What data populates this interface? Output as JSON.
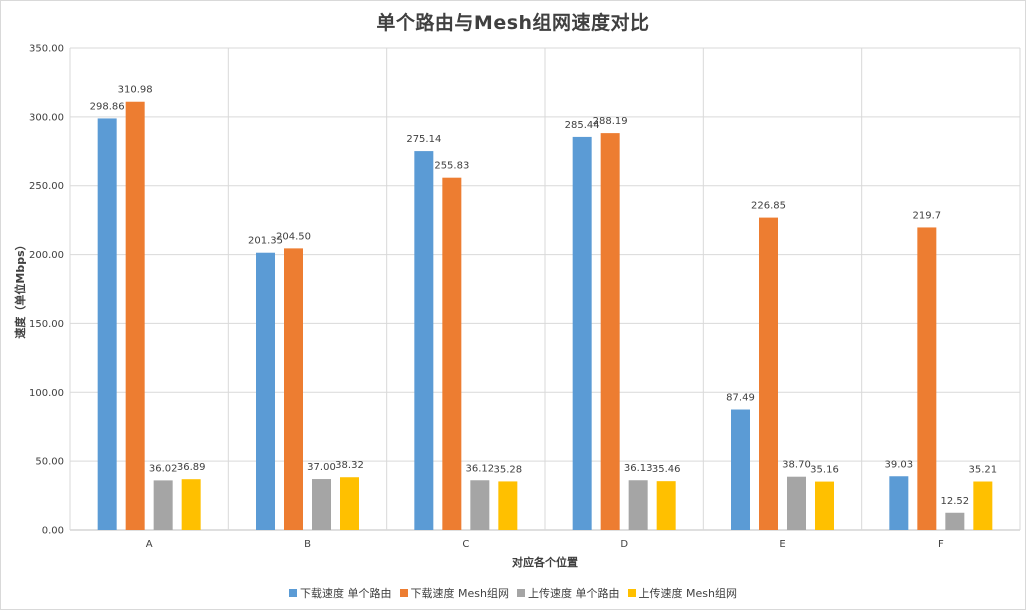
{
  "chart_data": {
    "type": "bar",
    "title": "单个路由与Mesh组网速度对比",
    "xlabel": "对应各个位置",
    "ylabel": "速度（单位Mbps）",
    "categories": [
      "A",
      "B",
      "C",
      "D",
      "E",
      "F"
    ],
    "ylim": [
      0,
      350
    ],
    "yticks": [
      "0.00",
      "50.00",
      "100.00",
      "150.00",
      "200.00",
      "250.00",
      "300.00",
      "350.00"
    ],
    "grid": true,
    "legend_position": "bottom",
    "series": [
      {
        "name": "下载速度 单个路由",
        "color": "#5b9bd5",
        "values": [
          298.86,
          201.35,
          275.14,
          285.44,
          87.49,
          39.03
        ],
        "labels": [
          "298.86",
          "201.35",
          "275.14",
          "285.44",
          "87.49",
          "39.03"
        ]
      },
      {
        "name": "下载速度 Mesh组网",
        "color": "#ed7d31",
        "values": [
          310.98,
          204.5,
          255.83,
          288.19,
          226.85,
          219.7
        ],
        "labels": [
          "310.98",
          "204.50",
          "255.83",
          "288.19",
          "226.85",
          "219.7"
        ]
      },
      {
        "name": "上传速度 单个路由",
        "color": "#a5a5a5",
        "values": [
          36.02,
          37.0,
          36.12,
          36.13,
          38.7,
          12.52
        ],
        "labels": [
          "36.02",
          "37.00",
          "36.12",
          "36.13",
          "38.70",
          "12.52"
        ]
      },
      {
        "name": "上传速度 Mesh组网",
        "color": "#ffc000",
        "values": [
          36.89,
          38.32,
          35.28,
          35.46,
          35.16,
          35.21
        ],
        "labels": [
          "36.89",
          "38.32",
          "35.28",
          "35.46",
          "35.16",
          "35.21"
        ]
      }
    ]
  }
}
